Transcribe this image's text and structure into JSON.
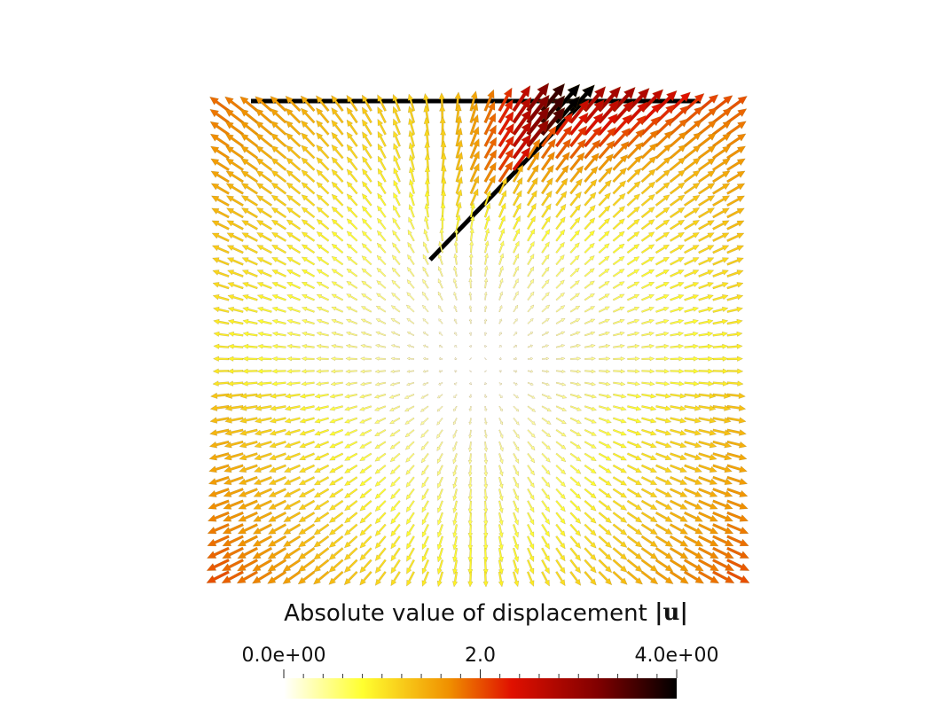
{
  "colorbar": {
    "title": "Absolute value of displacement",
    "symbol": "|u|",
    "range": [
      0,
      4
    ],
    "ticks": [
      {
        "value": 0,
        "label": "0.0e+00"
      },
      {
        "value": 2,
        "label": "2.0"
      },
      {
        "value": 4,
        "label": "4.0e+00"
      }
    ]
  }
}
